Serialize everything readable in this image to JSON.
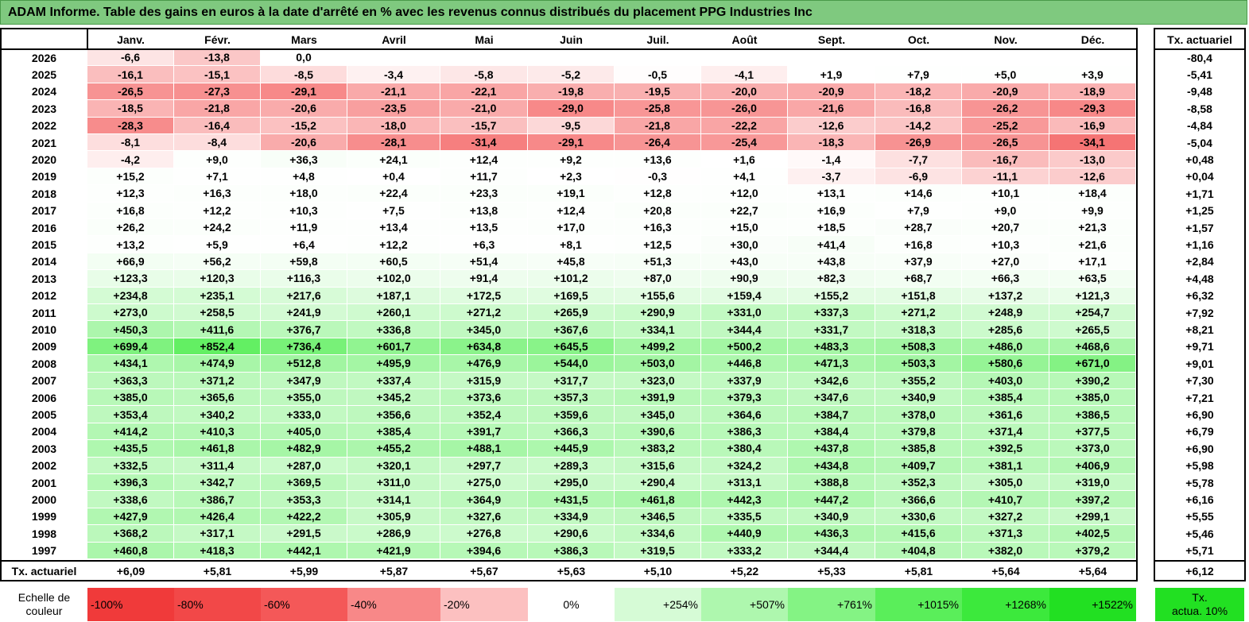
{
  "title": "ADAM Informe. Table des gains en euros à la date d'arrêté en % avec les revenus connus distribués du placement PPG Industries Inc",
  "chart_data": {
    "type": "heatmap",
    "columns": [
      "Janv.",
      "Févr.",
      "Mars",
      "Avril",
      "Mai",
      "Juin",
      "Juil.",
      "Août",
      "Sept.",
      "Oct.",
      "Nov.",
      "Déc."
    ],
    "rate_column_label": "Tx. actuariel",
    "rows": [
      {
        "year": "2026",
        "values": [
          "-6,6",
          "-13,8",
          "0,0",
          "",
          "",
          "",
          "",
          "",
          "",
          "",
          "",
          ""
        ],
        "rate": "-80,4"
      },
      {
        "year": "2025",
        "values": [
          "-16,1",
          "-15,1",
          "-8,5",
          "-3,4",
          "-5,8",
          "-5,2",
          "-0,5",
          "-4,1",
          "+1,9",
          "+7,9",
          "+5,0",
          "+3,9"
        ],
        "rate": "-5,41"
      },
      {
        "year": "2024",
        "values": [
          "-26,5",
          "-27,3",
          "-29,1",
          "-21,1",
          "-22,1",
          "-19,8",
          "-19,5",
          "-20,0",
          "-20,9",
          "-18,2",
          "-20,9",
          "-18,9"
        ],
        "rate": "-9,48"
      },
      {
        "year": "2023",
        "values": [
          "-18,5",
          "-21,8",
          "-20,6",
          "-23,5",
          "-21,0",
          "-29,0",
          "-25,8",
          "-26,0",
          "-21,6",
          "-16,8",
          "-26,2",
          "-29,3"
        ],
        "rate": "-8,58"
      },
      {
        "year": "2022",
        "values": [
          "-28,3",
          "-16,4",
          "-15,2",
          "-18,0",
          "-15,7",
          "-9,5",
          "-21,8",
          "-22,2",
          "-12,6",
          "-14,2",
          "-25,2",
          "-16,9"
        ],
        "rate": "-4,84"
      },
      {
        "year": "2021",
        "values": [
          "-8,1",
          "-8,4",
          "-20,6",
          "-28,1",
          "-31,4",
          "-29,1",
          "-26,4",
          "-25,4",
          "-18,3",
          "-26,9",
          "-26,5",
          "-34,1"
        ],
        "rate": "-5,04"
      },
      {
        "year": "2020",
        "values": [
          "-4,2",
          "+9,0",
          "+36,3",
          "+24,1",
          "+12,4",
          "+9,2",
          "+13,6",
          "+1,6",
          "-1,4",
          "-7,7",
          "-16,7",
          "-13,0"
        ],
        "rate": "+0,48"
      },
      {
        "year": "2019",
        "values": [
          "+15,2",
          "+7,1",
          "+4,8",
          "+0,4",
          "+11,7",
          "+2,3",
          "-0,3",
          "+4,1",
          "-3,7",
          "-6,9",
          "-11,1",
          "-12,6"
        ],
        "rate": "+0,04"
      },
      {
        "year": "2018",
        "values": [
          "+12,3",
          "+16,3",
          "+18,0",
          "+22,4",
          "+23,3",
          "+19,1",
          "+12,8",
          "+12,0",
          "+13,1",
          "+14,6",
          "+10,1",
          "+18,4"
        ],
        "rate": "+1,71"
      },
      {
        "year": "2017",
        "values": [
          "+16,8",
          "+12,2",
          "+10,3",
          "+7,5",
          "+13,8",
          "+12,4",
          "+20,8",
          "+22,7",
          "+16,9",
          "+7,9",
          "+9,0",
          "+9,9"
        ],
        "rate": "+1,25"
      },
      {
        "year": "2016",
        "values": [
          "+26,2",
          "+24,2",
          "+11,9",
          "+13,4",
          "+13,5",
          "+17,0",
          "+16,3",
          "+15,0",
          "+18,5",
          "+28,7",
          "+20,7",
          "+21,3"
        ],
        "rate": "+1,57"
      },
      {
        "year": "2015",
        "values": [
          "+13,2",
          "+5,9",
          "+6,4",
          "+12,2",
          "+6,3",
          "+8,1",
          "+12,5",
          "+30,0",
          "+41,4",
          "+16,8",
          "+10,3",
          "+21,6"
        ],
        "rate": "+1,16"
      },
      {
        "year": "2014",
        "values": [
          "+66,9",
          "+56,2",
          "+59,8",
          "+60,5",
          "+51,4",
          "+45,8",
          "+51,3",
          "+43,0",
          "+43,8",
          "+37,9",
          "+27,0",
          "+17,1"
        ],
        "rate": "+2,84"
      },
      {
        "year": "2013",
        "values": [
          "+123,3",
          "+120,3",
          "+116,3",
          "+102,0",
          "+91,4",
          "+101,2",
          "+87,0",
          "+90,9",
          "+82,3",
          "+68,7",
          "+66,3",
          "+63,5"
        ],
        "rate": "+4,48"
      },
      {
        "year": "2012",
        "values": [
          "+234,8",
          "+235,1",
          "+217,6",
          "+187,1",
          "+172,5",
          "+169,5",
          "+155,6",
          "+159,4",
          "+155,2",
          "+151,8",
          "+137,2",
          "+121,3"
        ],
        "rate": "+6,32"
      },
      {
        "year": "2011",
        "values": [
          "+273,0",
          "+258,5",
          "+241,9",
          "+260,1",
          "+271,2",
          "+265,9",
          "+290,9",
          "+331,0",
          "+337,3",
          "+271,2",
          "+248,9",
          "+254,7"
        ],
        "rate": "+7,92"
      },
      {
        "year": "2010",
        "values": [
          "+450,3",
          "+411,6",
          "+376,7",
          "+336,8",
          "+345,0",
          "+367,6",
          "+334,1",
          "+344,4",
          "+331,7",
          "+318,3",
          "+285,6",
          "+265,5"
        ],
        "rate": "+8,21"
      },
      {
        "year": "2009",
        "values": [
          "+699,4",
          "+852,4",
          "+736,4",
          "+601,7",
          "+634,8",
          "+645,5",
          "+499,2",
          "+500,2",
          "+483,3",
          "+508,3",
          "+486,0",
          "+468,6"
        ],
        "rate": "+9,71"
      },
      {
        "year": "2008",
        "values": [
          "+434,1",
          "+474,9",
          "+512,8",
          "+495,9",
          "+476,9",
          "+544,0",
          "+503,0",
          "+446,8",
          "+471,3",
          "+503,3",
          "+580,6",
          "+671,0"
        ],
        "rate": "+9,01"
      },
      {
        "year": "2007",
        "values": [
          "+363,3",
          "+371,2",
          "+347,9",
          "+337,4",
          "+315,9",
          "+317,7",
          "+323,0",
          "+337,9",
          "+342,6",
          "+355,2",
          "+403,0",
          "+390,2"
        ],
        "rate": "+7,30"
      },
      {
        "year": "2006",
        "values": [
          "+385,0",
          "+365,6",
          "+355,0",
          "+345,2",
          "+373,6",
          "+357,3",
          "+391,9",
          "+379,3",
          "+347,6",
          "+340,9",
          "+385,4",
          "+385,0"
        ],
        "rate": "+7,21"
      },
      {
        "year": "2005",
        "values": [
          "+353,4",
          "+340,2",
          "+333,0",
          "+356,6",
          "+352,4",
          "+359,6",
          "+345,0",
          "+364,6",
          "+384,7",
          "+378,0",
          "+361,6",
          "+386,5"
        ],
        "rate": "+6,90"
      },
      {
        "year": "2004",
        "values": [
          "+414,2",
          "+410,3",
          "+405,0",
          "+385,4",
          "+391,7",
          "+366,3",
          "+390,6",
          "+386,3",
          "+384,4",
          "+379,8",
          "+371,4",
          "+377,5"
        ],
        "rate": "+6,79"
      },
      {
        "year": "2003",
        "values": [
          "+435,5",
          "+461,8",
          "+482,9",
          "+455,2",
          "+488,1",
          "+445,9",
          "+383,2",
          "+380,4",
          "+437,8",
          "+385,8",
          "+392,5",
          "+373,0"
        ],
        "rate": "+6,90"
      },
      {
        "year": "2002",
        "values": [
          "+332,5",
          "+311,4",
          "+287,0",
          "+320,1",
          "+297,7",
          "+289,3",
          "+315,6",
          "+324,2",
          "+434,8",
          "+409,7",
          "+381,1",
          "+406,9"
        ],
        "rate": "+5,98"
      },
      {
        "year": "2001",
        "values": [
          "+396,3",
          "+342,7",
          "+369,5",
          "+311,0",
          "+275,0",
          "+295,0",
          "+290,4",
          "+313,1",
          "+388,8",
          "+352,3",
          "+305,0",
          "+319,0"
        ],
        "rate": "+5,78"
      },
      {
        "year": "2000",
        "values": [
          "+338,6",
          "+386,7",
          "+353,3",
          "+314,1",
          "+364,9",
          "+431,5",
          "+461,8",
          "+442,3",
          "+447,2",
          "+366,6",
          "+410,7",
          "+397,2"
        ],
        "rate": "+6,16"
      },
      {
        "year": "1999",
        "values": [
          "+427,9",
          "+426,4",
          "+422,2",
          "+305,9",
          "+327,6",
          "+334,9",
          "+346,5",
          "+335,5",
          "+340,9",
          "+330,6",
          "+327,2",
          "+299,1"
        ],
        "rate": "+5,55"
      },
      {
        "year": "1998",
        "values": [
          "+368,2",
          "+317,1",
          "+291,5",
          "+286,9",
          "+276,8",
          "+290,6",
          "+334,6",
          "+440,9",
          "+436,3",
          "+415,6",
          "+371,3",
          "+402,5"
        ],
        "rate": "+5,46"
      },
      {
        "year": "1997",
        "values": [
          "+460,8",
          "+418,3",
          "+442,1",
          "+421,9",
          "+394,6",
          "+386,3",
          "+319,5",
          "+333,2",
          "+344,4",
          "+404,8",
          "+382,0",
          "+379,2"
        ],
        "rate": "+5,71"
      }
    ],
    "footer": {
      "label": "Tx. actuariel",
      "values": [
        "+6,09",
        "+5,81",
        "+5,99",
        "+5,87",
        "+5,67",
        "+5,63",
        "+5,10",
        "+5,22",
        "+5,33",
        "+5,81",
        "+5,64",
        "+5,64"
      ],
      "rate": "+6,12"
    },
    "color_scale": {
      "label_line1": "Echelle de",
      "label_line2": "couleur",
      "stops": [
        {
          "label": "-100%",
          "color": "#f03a3a"
        },
        {
          "label": "-80%",
          "color": "#f24848"
        },
        {
          "label": "-60%",
          "color": "#f45858"
        },
        {
          "label": "-40%",
          "color": "#f88888"
        },
        {
          "label": "-20%",
          "color": "#fcc0c0"
        },
        {
          "label": "0%",
          "color": "#ffffff"
        },
        {
          "label": "+254%",
          "color": "#d6fbd6"
        },
        {
          "label": "+507%",
          "color": "#aef7ae"
        },
        {
          "label": "+761%",
          "color": "#84f384"
        },
        {
          "label": "+1015%",
          "color": "#5aee5a"
        },
        {
          "label": "+1268%",
          "color": "#3ce93c"
        },
        {
          "label": "+1522%",
          "color": "#22e022"
        }
      ],
      "rate_label_line1": "Tx.",
      "rate_label_line2": "actua. 10%",
      "rate_color": "#22e022"
    }
  }
}
